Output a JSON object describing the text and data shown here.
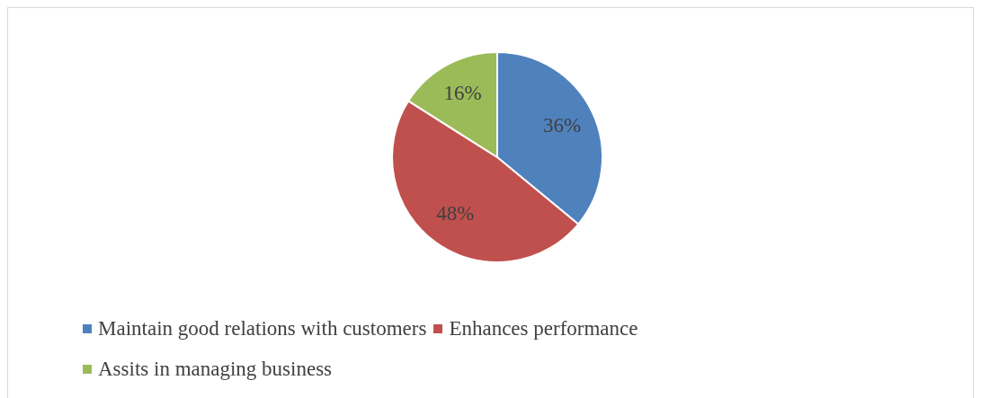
{
  "chart_data": {
    "type": "pie",
    "categories": [
      "Maintain good relations with customers",
      "Enhances performance",
      "Assits in managing business"
    ],
    "values": [
      36,
      48,
      16
    ],
    "colors": [
      "#4f81bd",
      "#c0504d",
      "#9bbb59"
    ],
    "value_labels": [
      "36%",
      "48%",
      "16%"
    ],
    "legend": "bottom"
  }
}
